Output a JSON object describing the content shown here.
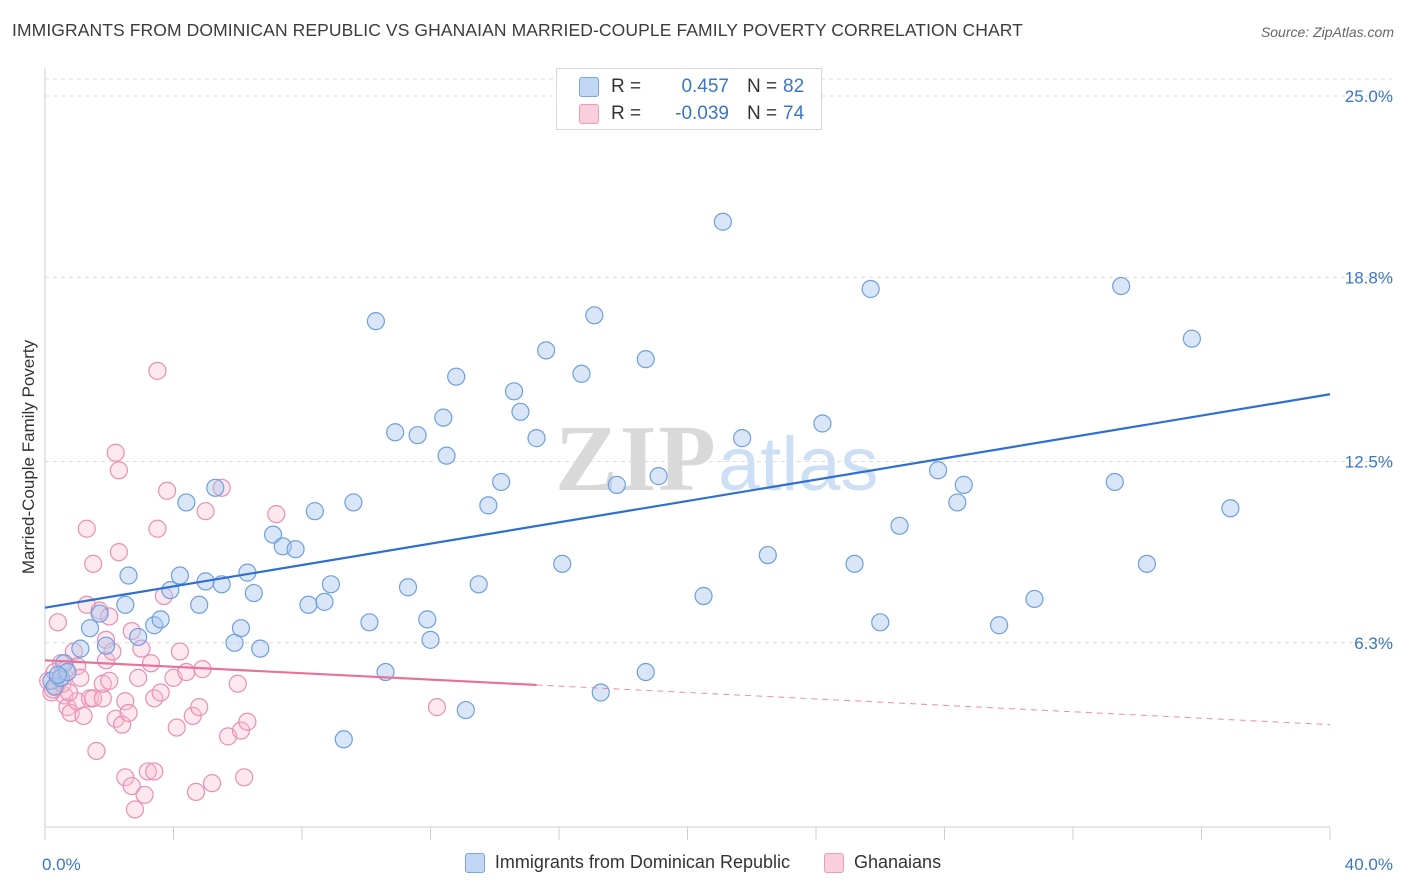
{
  "title": "IMMIGRANTS FROM DOMINICAN REPUBLIC VS GHANAIAN MARRIED-COUPLE FAMILY POVERTY CORRELATION CHART",
  "source": "Source: ZipAtlas.com",
  "watermark": {
    "zip": "ZIP",
    "atlas": "atlas"
  },
  "stats": [
    {
      "r_label": "R =",
      "r_value": "0.457",
      "n_label": "N =",
      "n_value": "82",
      "color": "#a9c6f0",
      "border": "#6b9ee0"
    },
    {
      "r_label": "R =",
      "r_value": "-0.039",
      "n_label": "N =",
      "n_value": "74",
      "color": "#f7bcd0",
      "border": "#ea8fb0"
    }
  ],
  "legend": [
    {
      "label": "Immigrants from Dominican Republic",
      "color": "#c2d7f4",
      "border": "#7aa5e0"
    },
    {
      "label": "Ghanaians",
      "color": "#f9cfdd",
      "border": "#eb9cb8"
    }
  ],
  "chart_data": {
    "type": "scatter",
    "title": "IMMIGRANTS FROM DOMINICAN REPUBLIC VS GHANAIAN MARRIED-COUPLE FAMILY POVERTY CORRELATION CHART",
    "xlabel": "",
    "ylabel": "Married-Couple Family Poverty",
    "xlim": [
      0,
      40
    ],
    "ylim": [
      0,
      25.5
    ],
    "x_tick_labels": [
      "0.0%",
      "40.0%"
    ],
    "y_ticks": [
      6.3,
      12.5,
      18.8,
      25.0
    ],
    "y_tick_labels": [
      "6.3%",
      "12.5%",
      "18.8%",
      "25.0%"
    ],
    "grid": true,
    "colors": {
      "blue_line": "#2e6fcf",
      "pink_line": "#e8709a",
      "axis_text": "#3a76c8"
    },
    "series": [
      {
        "name": "Immigrants from Dominican Republic",
        "trend": {
          "x": [
            0,
            40
          ],
          "y": [
            7.5,
            14.8
          ],
          "dashed_after": null
        },
        "points": [
          [
            0.2,
            5.0
          ],
          [
            0.3,
            4.8
          ],
          [
            0.5,
            5.1
          ],
          [
            0.6,
            5.6
          ],
          [
            0.7,
            5.3
          ],
          [
            1.1,
            6.1
          ],
          [
            1.4,
            6.8
          ],
          [
            1.7,
            7.3
          ],
          [
            1.9,
            6.2
          ],
          [
            2.5,
            7.6
          ],
          [
            2.9,
            6.5
          ],
          [
            3.4,
            6.9
          ],
          [
            2.6,
            8.6
          ],
          [
            3.6,
            7.1
          ],
          [
            3.9,
            8.1
          ],
          [
            4.2,
            8.6
          ],
          [
            4.4,
            11.1
          ],
          [
            4.8,
            7.6
          ],
          [
            5.0,
            8.4
          ],
          [
            5.3,
            11.6
          ],
          [
            5.5,
            8.3
          ],
          [
            5.9,
            6.3
          ],
          [
            6.1,
            6.8
          ],
          [
            6.3,
            8.7
          ],
          [
            6.5,
            8.0
          ],
          [
            6.7,
            6.1
          ],
          [
            7.1,
            10.0
          ],
          [
            7.4,
            9.6
          ],
          [
            7.8,
            9.5
          ],
          [
            8.2,
            7.6
          ],
          [
            8.4,
            10.8
          ],
          [
            8.7,
            7.7
          ],
          [
            8.9,
            8.3
          ],
          [
            9.3,
            3.0
          ],
          [
            9.6,
            11.1
          ],
          [
            10.1,
            7.0
          ],
          [
            10.3,
            17.3
          ],
          [
            10.6,
            5.3
          ],
          [
            10.9,
            13.5
          ],
          [
            11.3,
            8.2
          ],
          [
            11.6,
            13.4
          ],
          [
            11.9,
            7.1
          ],
          [
            12.0,
            6.4
          ],
          [
            12.4,
            14.0
          ],
          [
            12.5,
            12.7
          ],
          [
            12.8,
            15.4
          ],
          [
            13.1,
            4.0
          ],
          [
            13.5,
            8.3
          ],
          [
            13.8,
            11.0
          ],
          [
            14.2,
            11.8
          ],
          [
            14.6,
            14.9
          ],
          [
            14.8,
            14.2
          ],
          [
            15.3,
            13.3
          ],
          [
            15.6,
            16.3
          ],
          [
            16.1,
            9.0
          ],
          [
            16.7,
            15.5
          ],
          [
            17.1,
            17.5
          ],
          [
            17.3,
            4.6
          ],
          [
            17.8,
            11.7
          ],
          [
            18.7,
            16.0
          ],
          [
            18.7,
            5.3
          ],
          [
            19.1,
            12.0
          ],
          [
            20.5,
            7.9
          ],
          [
            21.1,
            20.7
          ],
          [
            21.7,
            13.3
          ],
          [
            22.5,
            9.3
          ],
          [
            24.2,
            13.8
          ],
          [
            25.2,
            9.0
          ],
          [
            25.7,
            18.4
          ],
          [
            26.0,
            7.0
          ],
          [
            26.6,
            10.3
          ],
          [
            27.8,
            12.2
          ],
          [
            28.4,
            11.1
          ],
          [
            28.6,
            11.7
          ],
          [
            29.7,
            6.9
          ],
          [
            30.8,
            7.8
          ],
          [
            33.3,
            11.8
          ],
          [
            33.5,
            18.5
          ],
          [
            34.3,
            9.0
          ],
          [
            35.7,
            16.7
          ],
          [
            36.9,
            10.9
          ],
          [
            0.4,
            5.2
          ]
        ]
      },
      {
        "name": "Ghanaians",
        "trend": {
          "x": [
            0,
            40
          ],
          "y": [
            5.7,
            3.5
          ],
          "dashed_after": 15.3
        },
        "points": [
          [
            0.1,
            5.0
          ],
          [
            0.2,
            4.6
          ],
          [
            0.3,
            5.3
          ],
          [
            0.35,
            4.8
          ],
          [
            0.4,
            7.0
          ],
          [
            0.5,
            5.6
          ],
          [
            0.6,
            4.5
          ],
          [
            0.7,
            4.1
          ],
          [
            0.8,
            3.9
          ],
          [
            0.9,
            6.0
          ],
          [
            1.0,
            5.5
          ],
          [
            1.0,
            4.3
          ],
          [
            1.1,
            5.1
          ],
          [
            1.2,
            3.8
          ],
          [
            1.3,
            7.6
          ],
          [
            1.3,
            10.2
          ],
          [
            1.4,
            4.4
          ],
          [
            1.5,
            9.0
          ],
          [
            1.5,
            4.4
          ],
          [
            1.6,
            2.6
          ],
          [
            1.7,
            7.4
          ],
          [
            1.8,
            4.4
          ],
          [
            1.8,
            4.9
          ],
          [
            1.9,
            5.7
          ],
          [
            1.9,
            6.4
          ],
          [
            2.0,
            7.2
          ],
          [
            2.0,
            5.0
          ],
          [
            2.1,
            6.0
          ],
          [
            2.2,
            12.8
          ],
          [
            2.2,
            3.7
          ],
          [
            2.3,
            12.2
          ],
          [
            2.3,
            9.4
          ],
          [
            2.4,
            3.5
          ],
          [
            2.5,
            1.7
          ],
          [
            2.5,
            4.3
          ],
          [
            2.6,
            3.9
          ],
          [
            2.7,
            1.4
          ],
          [
            2.7,
            6.7
          ],
          [
            2.8,
            0.6
          ],
          [
            2.9,
            5.1
          ],
          [
            3.0,
            6.1
          ],
          [
            3.1,
            1.1
          ],
          [
            3.2,
            1.9
          ],
          [
            3.3,
            5.6
          ],
          [
            3.4,
            4.4
          ],
          [
            3.4,
            1.9
          ],
          [
            3.5,
            10.2
          ],
          [
            3.5,
            15.6
          ],
          [
            3.6,
            4.6
          ],
          [
            3.7,
            7.9
          ],
          [
            3.8,
            11.5
          ],
          [
            4.0,
            5.1
          ],
          [
            4.1,
            3.4
          ],
          [
            4.2,
            6.0
          ],
          [
            4.4,
            5.3
          ],
          [
            4.6,
            3.8
          ],
          [
            4.7,
            1.2
          ],
          [
            4.8,
            4.1
          ],
          [
            4.9,
            5.4
          ],
          [
            5.0,
            10.8
          ],
          [
            5.2,
            1.5
          ],
          [
            5.5,
            11.6
          ],
          [
            5.7,
            3.1
          ],
          [
            6.0,
            4.9
          ],
          [
            6.1,
            3.3
          ],
          [
            6.2,
            1.7
          ],
          [
            6.3,
            3.6
          ],
          [
            7.2,
            10.7
          ],
          [
            12.2,
            4.1
          ],
          [
            0.25,
            4.7
          ],
          [
            0.45,
            5.1
          ],
          [
            0.55,
            4.9
          ],
          [
            0.65,
            5.4
          ],
          [
            0.75,
            4.6
          ]
        ]
      }
    ]
  }
}
